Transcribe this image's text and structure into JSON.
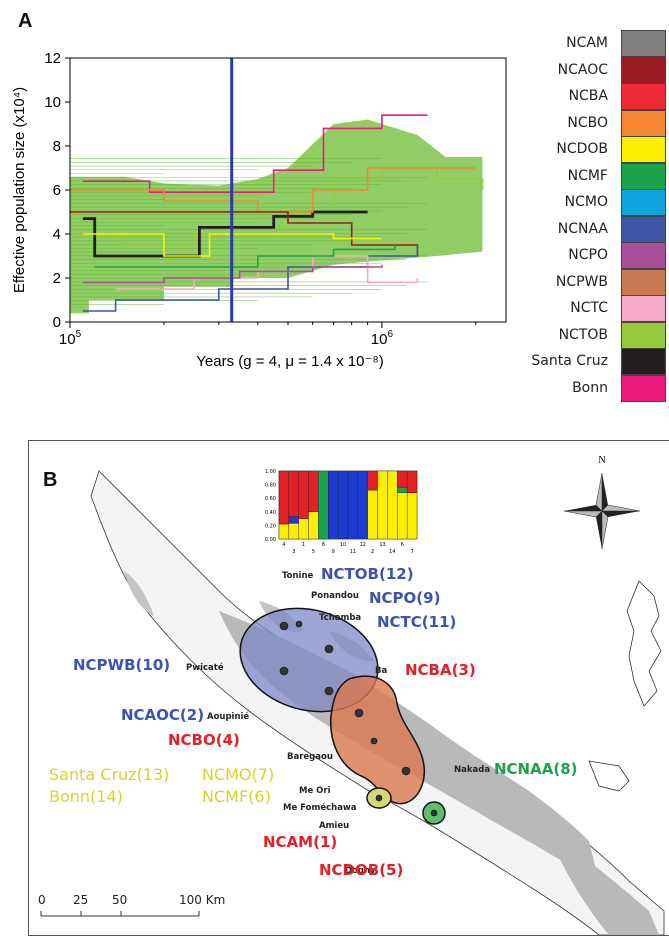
{
  "panel_a": {
    "letter": "A",
    "y_axis_label": "Effective population size (x10⁴)",
    "x_axis_label": "Years (g = 4, μ = 1.4 x 10⁻⁸)",
    "y_ticks": [
      "0",
      "2",
      "4",
      "6",
      "8",
      "10",
      "12"
    ],
    "x_ticks": [
      {
        "base": "10",
        "exp": "5"
      },
      {
        "base": "10",
        "exp": "6"
      }
    ]
  },
  "legend": [
    {
      "name": "NCAM",
      "color": "#7f7f7f"
    },
    {
      "name": "NCAOC",
      "color": "#9b1c20"
    },
    {
      "name": "NCBA",
      "color": "#ee2b36"
    },
    {
      "name": "NCBO",
      "color": "#f58631"
    },
    {
      "name": "NCDOB",
      "color": "#fdef00"
    },
    {
      "name": "NCMF",
      "color": "#1aa34a"
    },
    {
      "name": "NCMO",
      "color": "#10a3dc"
    },
    {
      "name": "NCNAA",
      "color": "#3c56a5"
    },
    {
      "name": "NCPO",
      "color": "#a94e9b"
    },
    {
      "name": "NCPWB",
      "color": "#c97a55"
    },
    {
      "name": "NCTC",
      "color": "#f5aac8"
    },
    {
      "name": "NCTOB",
      "color": "#97c93d"
    },
    {
      "name": "Santa Cruz",
      "color": "#231f20"
    },
    {
      "name": "Bonn",
      "color": "#ed1a7d"
    }
  ],
  "chart_data": [
    {
      "type": "line",
      "title": "",
      "xlabel": "Years (g = 4, μ = 1.4 x 10⁻⁸)",
      "ylabel": "Effective population size (x10⁴)",
      "xscale": "log",
      "xlim": [
        100000,
        2500000
      ],
      "ylim": [
        0,
        12
      ],
      "vertical_marker_x": 330000,
      "series": [
        {
          "name": "NCTOB",
          "color": "#97c93d",
          "x": [
            100000,
            150000,
            250000,
            330000,
            500000,
            700000,
            1000000,
            1500000,
            2100000
          ],
          "y": [
            4.0,
            3.5,
            4.0,
            4.3,
            5.0,
            6.5,
            7.0,
            6.5,
            6.0
          ]
        },
        {
          "name": "Santa Cruz",
          "color": "#231f20",
          "x": [
            110000,
            120000,
            150000,
            260000,
            340000,
            450000,
            600000,
            900000
          ],
          "y": [
            4.7,
            3.0,
            3.0,
            4.3,
            4.3,
            4.8,
            5.0,
            5.0
          ]
        },
        {
          "name": "Bonn",
          "color": "#ed1a7d",
          "x": [
            110000,
            180000,
            330000,
            450000,
            650000,
            1000000,
            1400000
          ],
          "y": [
            6.4,
            5.9,
            5.9,
            6.9,
            8.8,
            9.4,
            9.4
          ]
        },
        {
          "name": "NCBO",
          "color": "#f58631",
          "x": [
            100000,
            200000,
            400000,
            600000,
            900000,
            1500000,
            2000000
          ],
          "y": [
            6.0,
            5.5,
            5.0,
            6.0,
            7.0,
            7.0,
            7.0
          ]
        },
        {
          "name": "NCAOC",
          "color": "#9b1c20",
          "x": [
            100000,
            300000,
            500000,
            800000,
            1300000
          ],
          "y": [
            5.0,
            5.0,
            4.5,
            3.5,
            3.0
          ]
        },
        {
          "name": "NCDOB",
          "color": "#fdef00",
          "x": [
            110000,
            200000,
            280000,
            400000,
            700000,
            1000000
          ],
          "y": [
            4.0,
            3.0,
            4.0,
            4.0,
            3.8,
            3.8
          ]
        },
        {
          "name": "NCNAA",
          "color": "#3c56a5",
          "x": [
            110000,
            140000,
            300000,
            500000,
            900000,
            1300000
          ],
          "y": [
            0.5,
            1.0,
            1.5,
            2.5,
            3.0,
            3.5
          ]
        },
        {
          "name": "NCTC",
          "color": "#f5aac8",
          "x": [
            140000,
            250000,
            400000,
            600000,
            900000,
            1300000
          ],
          "y": [
            1.5,
            2.0,
            2.3,
            3.0,
            1.8,
            2.0
          ]
        },
        {
          "name": "NCPO",
          "color": "#a94e9b",
          "x": [
            110000,
            200000,
            350000,
            600000,
            1000000
          ],
          "y": [
            1.8,
            2.0,
            2.3,
            2.5,
            2.6
          ]
        },
        {
          "name": "NCMF",
          "color": "#1aa34a",
          "x": [
            120000,
            220000,
            400000,
            700000,
            1100000
          ],
          "y": [
            2.5,
            2.5,
            3.0,
            3.3,
            3.5
          ]
        }
      ]
    },
    {
      "type": "bar",
      "stacked": true,
      "title": "",
      "categories": [
        "4",
        "3",
        "1",
        "5",
        "8",
        "9",
        "10",
        "11",
        "12",
        "2",
        "13",
        "14",
        "6",
        "7"
      ],
      "ylim": [
        0,
        1
      ],
      "y_ticks": [
        "0.00",
        "0.20",
        "0.40",
        "0.60",
        "0.80",
        "1.00"
      ],
      "x_rows": [
        [
          "4",
          "",
          "1",
          "",
          "8",
          "",
          "10",
          "",
          "12",
          "",
          "13",
          "",
          "6",
          ""
        ],
        [
          "",
          "3",
          "",
          "5",
          "",
          "9",
          "",
          "11",
          "",
          "2",
          "",
          "14",
          "",
          "7"
        ]
      ],
      "series": [
        {
          "name": "yellow",
          "color": "#fdef00",
          "values": [
            0.22,
            0.23,
            0.3,
            0.4,
            0.0,
            0.0,
            0.0,
            0.0,
            0.0,
            0.72,
            1.0,
            1.0,
            0.68,
            0.68
          ]
        },
        {
          "name": "blue",
          "color": "#1e3bd1",
          "values": [
            0.0,
            0.1,
            0.0,
            0.0,
            0.0,
            1.0,
            1.0,
            1.0,
            1.0,
            0.0,
            0.0,
            0.0,
            0.0,
            0.0
          ]
        },
        {
          "name": "green",
          "color": "#1aa34a",
          "values": [
            0.0,
            0.0,
            0.0,
            0.0,
            1.0,
            0.0,
            0.0,
            0.0,
            0.0,
            0.0,
            0.0,
            0.0,
            0.08,
            0.0
          ]
        },
        {
          "name": "red",
          "color": "#e41f25",
          "values": [
            0.78,
            0.67,
            0.7,
            0.6,
            0.0,
            0.0,
            0.0,
            0.0,
            0.0,
            0.28,
            0.0,
            0.0,
            0.24,
            0.32
          ]
        }
      ]
    }
  ],
  "panel_b": {
    "letter": "B",
    "compass_label": "N",
    "scale_label": "100 Km",
    "scale_ticks": [
      "0",
      "25",
      "50"
    ],
    "pop_labels": [
      {
        "key": "nctob",
        "text": "NCTOB(12)",
        "color": "#3b54b4"
      },
      {
        "key": "ncpo",
        "text": "NCPO(9)",
        "color": "#3b54b4"
      },
      {
        "key": "nctc",
        "text": "NCTC(11)",
        "color": "#3b54b4"
      },
      {
        "key": "ncpwb",
        "text": "NCPWB(10)",
        "color": "#3b54b4"
      },
      {
        "key": "ncaoc",
        "text": "NCAOC(2)",
        "color": "#3b54b4"
      },
      {
        "key": "ncba",
        "text": "NCBA(3)",
        "color": "#e42026"
      },
      {
        "key": "ncbo",
        "text": "NCBO(4)",
        "color": "#e42026"
      },
      {
        "key": "ncam",
        "text": "NCAM(1)",
        "color": "#e42026"
      },
      {
        "key": "ncdob",
        "text": "NCDOB(5)",
        "color": "#e42026"
      },
      {
        "key": "ncnaa",
        "text": "NCNAA(8)",
        "color": "#1aa34a"
      },
      {
        "key": "ncmo",
        "text": "NCMO(7)",
        "color": "#d6d32a"
      },
      {
        "key": "ncmf",
        "text": "NCMF(6)",
        "color": "#d6d32a"
      },
      {
        "key": "santacruz",
        "text": "Santa Cruz(13)",
        "color": "#d6d32a"
      },
      {
        "key": "bonn",
        "text": "Bonn(14)",
        "color": "#d6d32a"
      }
    ],
    "places": [
      "Tonine",
      "Ponandou",
      "Tchamba",
      "Pwicaté",
      "Ba",
      "Aoupinié",
      "Baregaou",
      "Nakada",
      "Me Ori",
      "Me Foméchawa",
      "Amieu",
      "Dogny"
    ]
  }
}
